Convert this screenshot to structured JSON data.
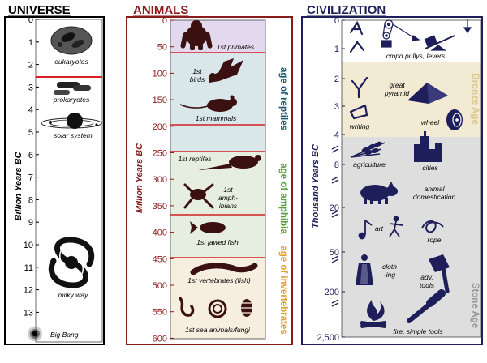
{
  "colors": {
    "universe": "#000000",
    "animals": "#8b1a1a",
    "civilization": "#1e1e5a",
    "divider": "#d42020",
    "primates_band": "#e3d9ef",
    "reptiles_band": "#d9e6ea",
    "amphibia_band": "#e6efdf",
    "invertebrates_band": "#f6efdf",
    "bronze_band": "#f2ead2",
    "stone_band": "#dedede",
    "reptiles_text": "#1f5a6b",
    "amphibia_text": "#5aa032",
    "invertebrates_text": "#e0a030",
    "bronze_text": "#dcc890",
    "stone_text": "#999999"
  },
  "universe": {
    "title": "UNIVERSE",
    "axis_label": "Billion Years BC",
    "ticks": [
      "0",
      "1",
      "2",
      "3",
      "4",
      "5",
      "6",
      "7",
      "8",
      "9",
      "10",
      "11",
      "12",
      "13"
    ],
    "labels": {
      "eukaryotes": "eukaryotes",
      "prokaryotes": "prokaryotes",
      "solar_system": "solar system",
      "milky_way": "milky way",
      "big_bang": "Big Bang"
    }
  },
  "animals": {
    "title": "ANIMALS",
    "axis_label": "Million Years BC",
    "ticks": [
      "0",
      "50",
      "100",
      "150",
      "200",
      "250",
      "300",
      "350",
      "400",
      "450",
      "500",
      "550",
      "600"
    ],
    "labels": {
      "primates": "1st primates",
      "birds_1": "1st",
      "birds_2": "birds",
      "mammals": "1st mammals",
      "reptiles": "1st reptiles",
      "amphibians_1": "1st",
      "amphibians_2": "amph-",
      "amphibians_3": "ibians",
      "jawed_fish": "1st jawed fish",
      "vertebrates": "1st vertebrates (fish)",
      "sea_animals": "1st sea animals/fungi"
    },
    "bands": {
      "reptiles": "age of reptiles",
      "amphibia": "age of amphibia",
      "invertebrates": "age of invertebrates"
    }
  },
  "civilization": {
    "title": "CIVILIZATION",
    "axis_label": "Thousand Years BC",
    "ticks": [
      "0",
      "1",
      "2",
      "3",
      "4",
      "8",
      "20",
      "50",
      "200",
      "2,500"
    ],
    "labels": {
      "pullys": "cmpd pullys, levers",
      "pyramid_1": "great",
      "pyramid_2": "pyramid",
      "writing": "writing",
      "wheel": "wheel",
      "agriculture": "agriculture",
      "cities": "cities",
      "domestication_1": "animal",
      "domestication_2": "domestication",
      "art": "art",
      "rope": "rope",
      "cloth_1": "cloth",
      "cloth_2": "-ing",
      "tools_1": "adv.",
      "tools_2": "tools",
      "fire": "fire, simple tools"
    },
    "bands": {
      "bronze": "Bronze Age",
      "stone": "Stone Age"
    }
  }
}
